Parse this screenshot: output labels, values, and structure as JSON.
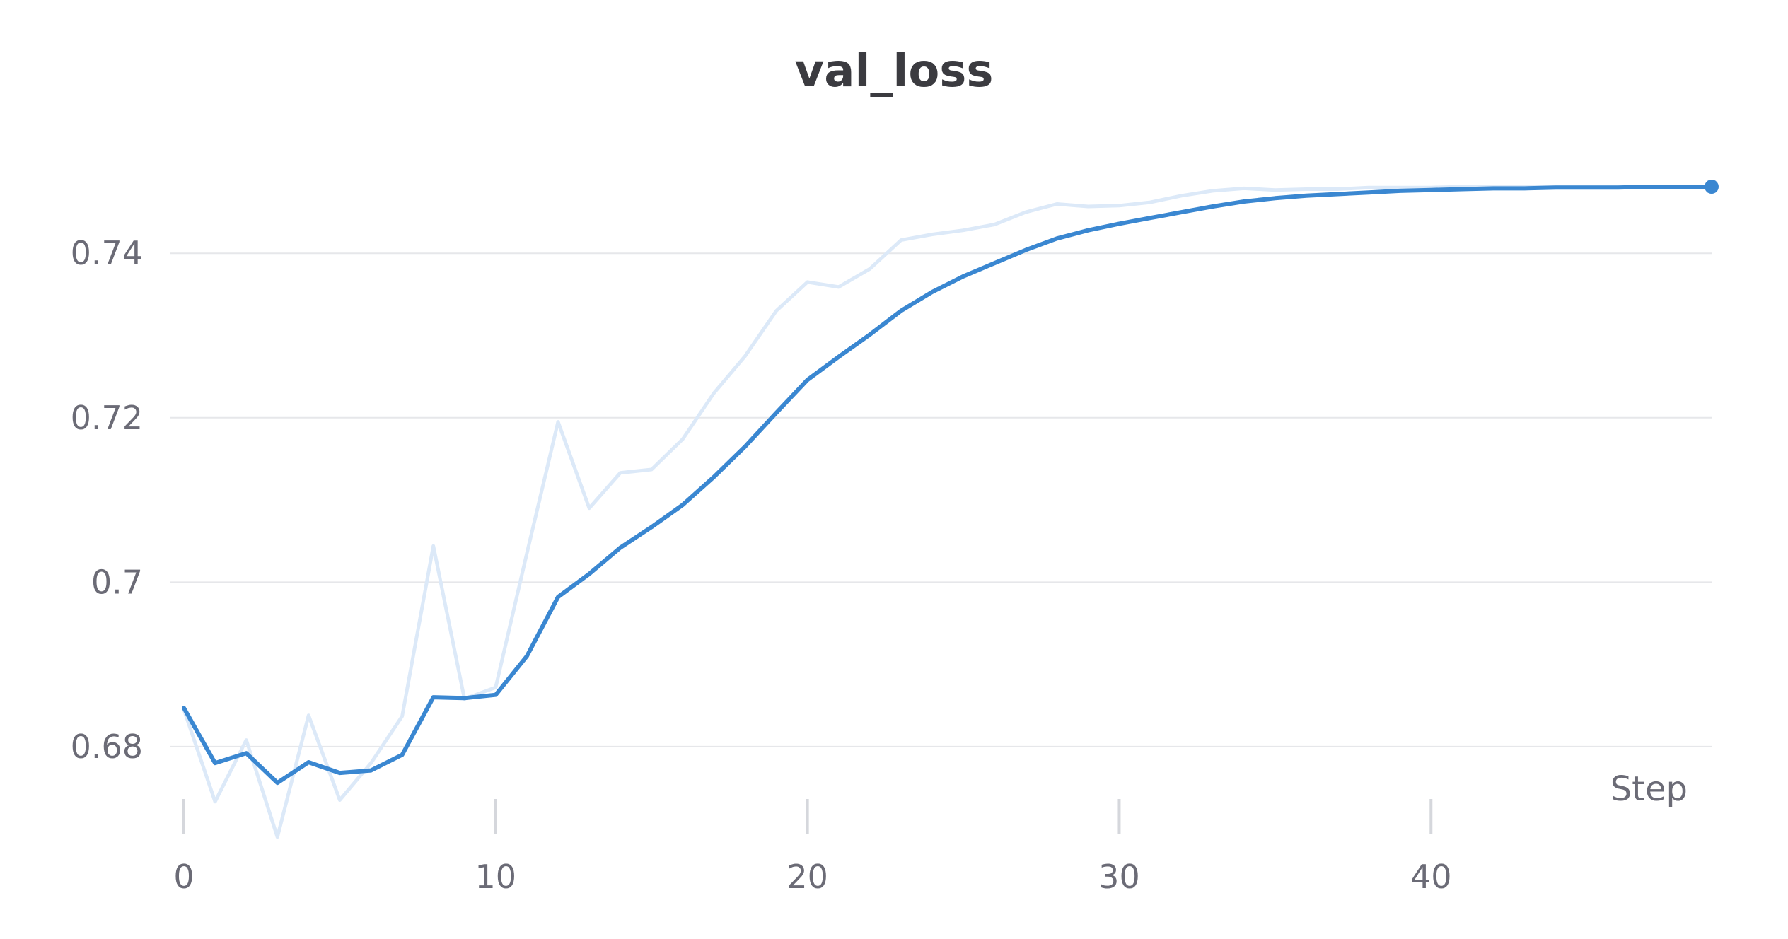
{
  "chart_data": {
    "type": "line",
    "title": "val_loss",
    "xlabel": "Step",
    "ylabel": "",
    "xlim": [
      0,
      49
    ],
    "ylim": [
      0.6695,
      0.7555
    ],
    "x_ticks": [
      0,
      10,
      20,
      30,
      40
    ],
    "x_tick_labels": [
      "0",
      "10",
      "20",
      "30",
      "40"
    ],
    "y_ticks": [
      0.68,
      0.7,
      0.72,
      0.74
    ],
    "y_tick_labels": [
      "0.68",
      "0.7",
      "0.72",
      "0.74"
    ],
    "grid": true,
    "legend": "none",
    "colors": {
      "smoothed": "#3a87d1",
      "raw": "#dce9f8"
    },
    "x": [
      0,
      1,
      2,
      3,
      4,
      5,
      6,
      7,
      8,
      9,
      10,
      11,
      12,
      13,
      14,
      15,
      16,
      17,
      18,
      19,
      20,
      21,
      22,
      23,
      24,
      25,
      26,
      27,
      28,
      29,
      30,
      31,
      32,
      33,
      34,
      35,
      36,
      37,
      38,
      39,
      40,
      41,
      42,
      43,
      44,
      45,
      46,
      47,
      48,
      49
    ],
    "series": [
      {
        "role": "raw",
        "values": [
          0.6845,
          0.6733,
          0.6808,
          0.669,
          0.6838,
          0.6735,
          0.678,
          0.6837,
          0.7044,
          0.6858,
          0.6872,
          0.7035,
          0.7195,
          0.709,
          0.7133,
          0.7137,
          0.7174,
          0.723,
          0.7275,
          0.733,
          0.7365,
          0.7359,
          0.7381,
          0.7416,
          0.7423,
          0.7428,
          0.7435,
          0.745,
          0.746,
          0.7457,
          0.7458,
          0.7462,
          0.747,
          0.7476,
          0.7479,
          0.7477,
          0.7478,
          0.7478,
          0.748,
          0.748,
          0.748,
          0.7481,
          0.7481,
          0.7481,
          0.7481,
          0.7481,
          0.7481,
          0.7481,
          0.7481,
          0.7481
        ]
      },
      {
        "role": "smoothed",
        "values": [
          0.6847,
          0.678,
          0.6792,
          0.6756,
          0.6781,
          0.6768,
          0.6771,
          0.679,
          0.686,
          0.6859,
          0.6863,
          0.691,
          0.6982,
          0.701,
          0.7042,
          0.7067,
          0.7094,
          0.7128,
          0.7165,
          0.7206,
          0.7246,
          0.7274,
          0.7301,
          0.733,
          0.7353,
          0.7372,
          0.7388,
          0.7404,
          0.7418,
          0.7428,
          0.7436,
          0.7443,
          0.745,
          0.7457,
          0.7463,
          0.7467,
          0.747,
          0.7472,
          0.7474,
          0.7476,
          0.7477,
          0.7478,
          0.7479,
          0.7479,
          0.748,
          0.748,
          0.748,
          0.7481,
          0.7481,
          0.7481
        ]
      }
    ]
  }
}
